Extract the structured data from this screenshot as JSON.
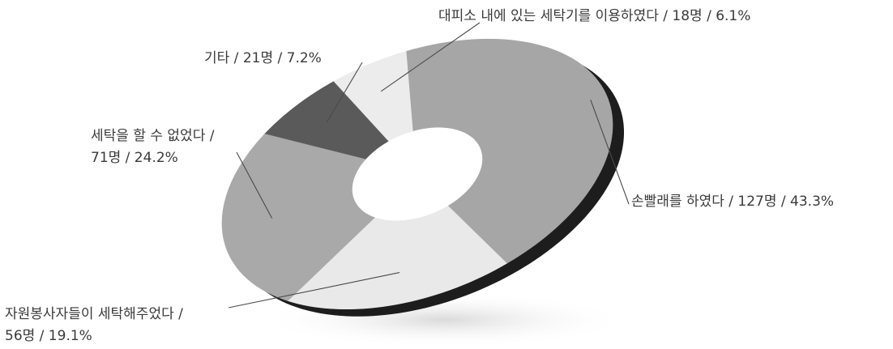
{
  "chart_data": {
    "type": "pie",
    "variant": "3d-donut",
    "slices": [
      {
        "label": "손빨래를 하였다",
        "count": "127명",
        "percent": "43.3%",
        "value": 43.3,
        "color": "#a6a6a6"
      },
      {
        "label": "자원봉사자들이 세탁해주었다",
        "count": "56명",
        "percent": "19.1%",
        "value": 19.1,
        "color": "#e9e9e9"
      },
      {
        "label": "세탁을 할 수 없었다",
        "count": "71명",
        "percent": "24.2%",
        "value": 24.2,
        "color": "#a9a9a9"
      },
      {
        "label": "기타",
        "count": "21명",
        "percent": "7.2%",
        "value": 7.2,
        "color": "#5a5a5a"
      },
      {
        "label": "대피소 내에 있는 세탁기를 이용하였다",
        "count": "18명",
        "percent": "6.1%",
        "value": 6.1,
        "color": "#ececec"
      }
    ],
    "labels": {
      "s0": "손빨래를 하였다 / 127명 / 43.3%",
      "s1_line1": "자원봉사자들이 세탁해주었다 /",
      "s1_line2": "56명 / 19.1%",
      "s2_line1": "세탁을 할 수 없었다 /",
      "s2_line2": "71명 / 24.2%",
      "s3": "기타 / 21명 / 7.2%",
      "s4": "대피소 내에 있는 세탁기를 이용하였다 / 18명 / 6.1%"
    },
    "legend": "none"
  }
}
